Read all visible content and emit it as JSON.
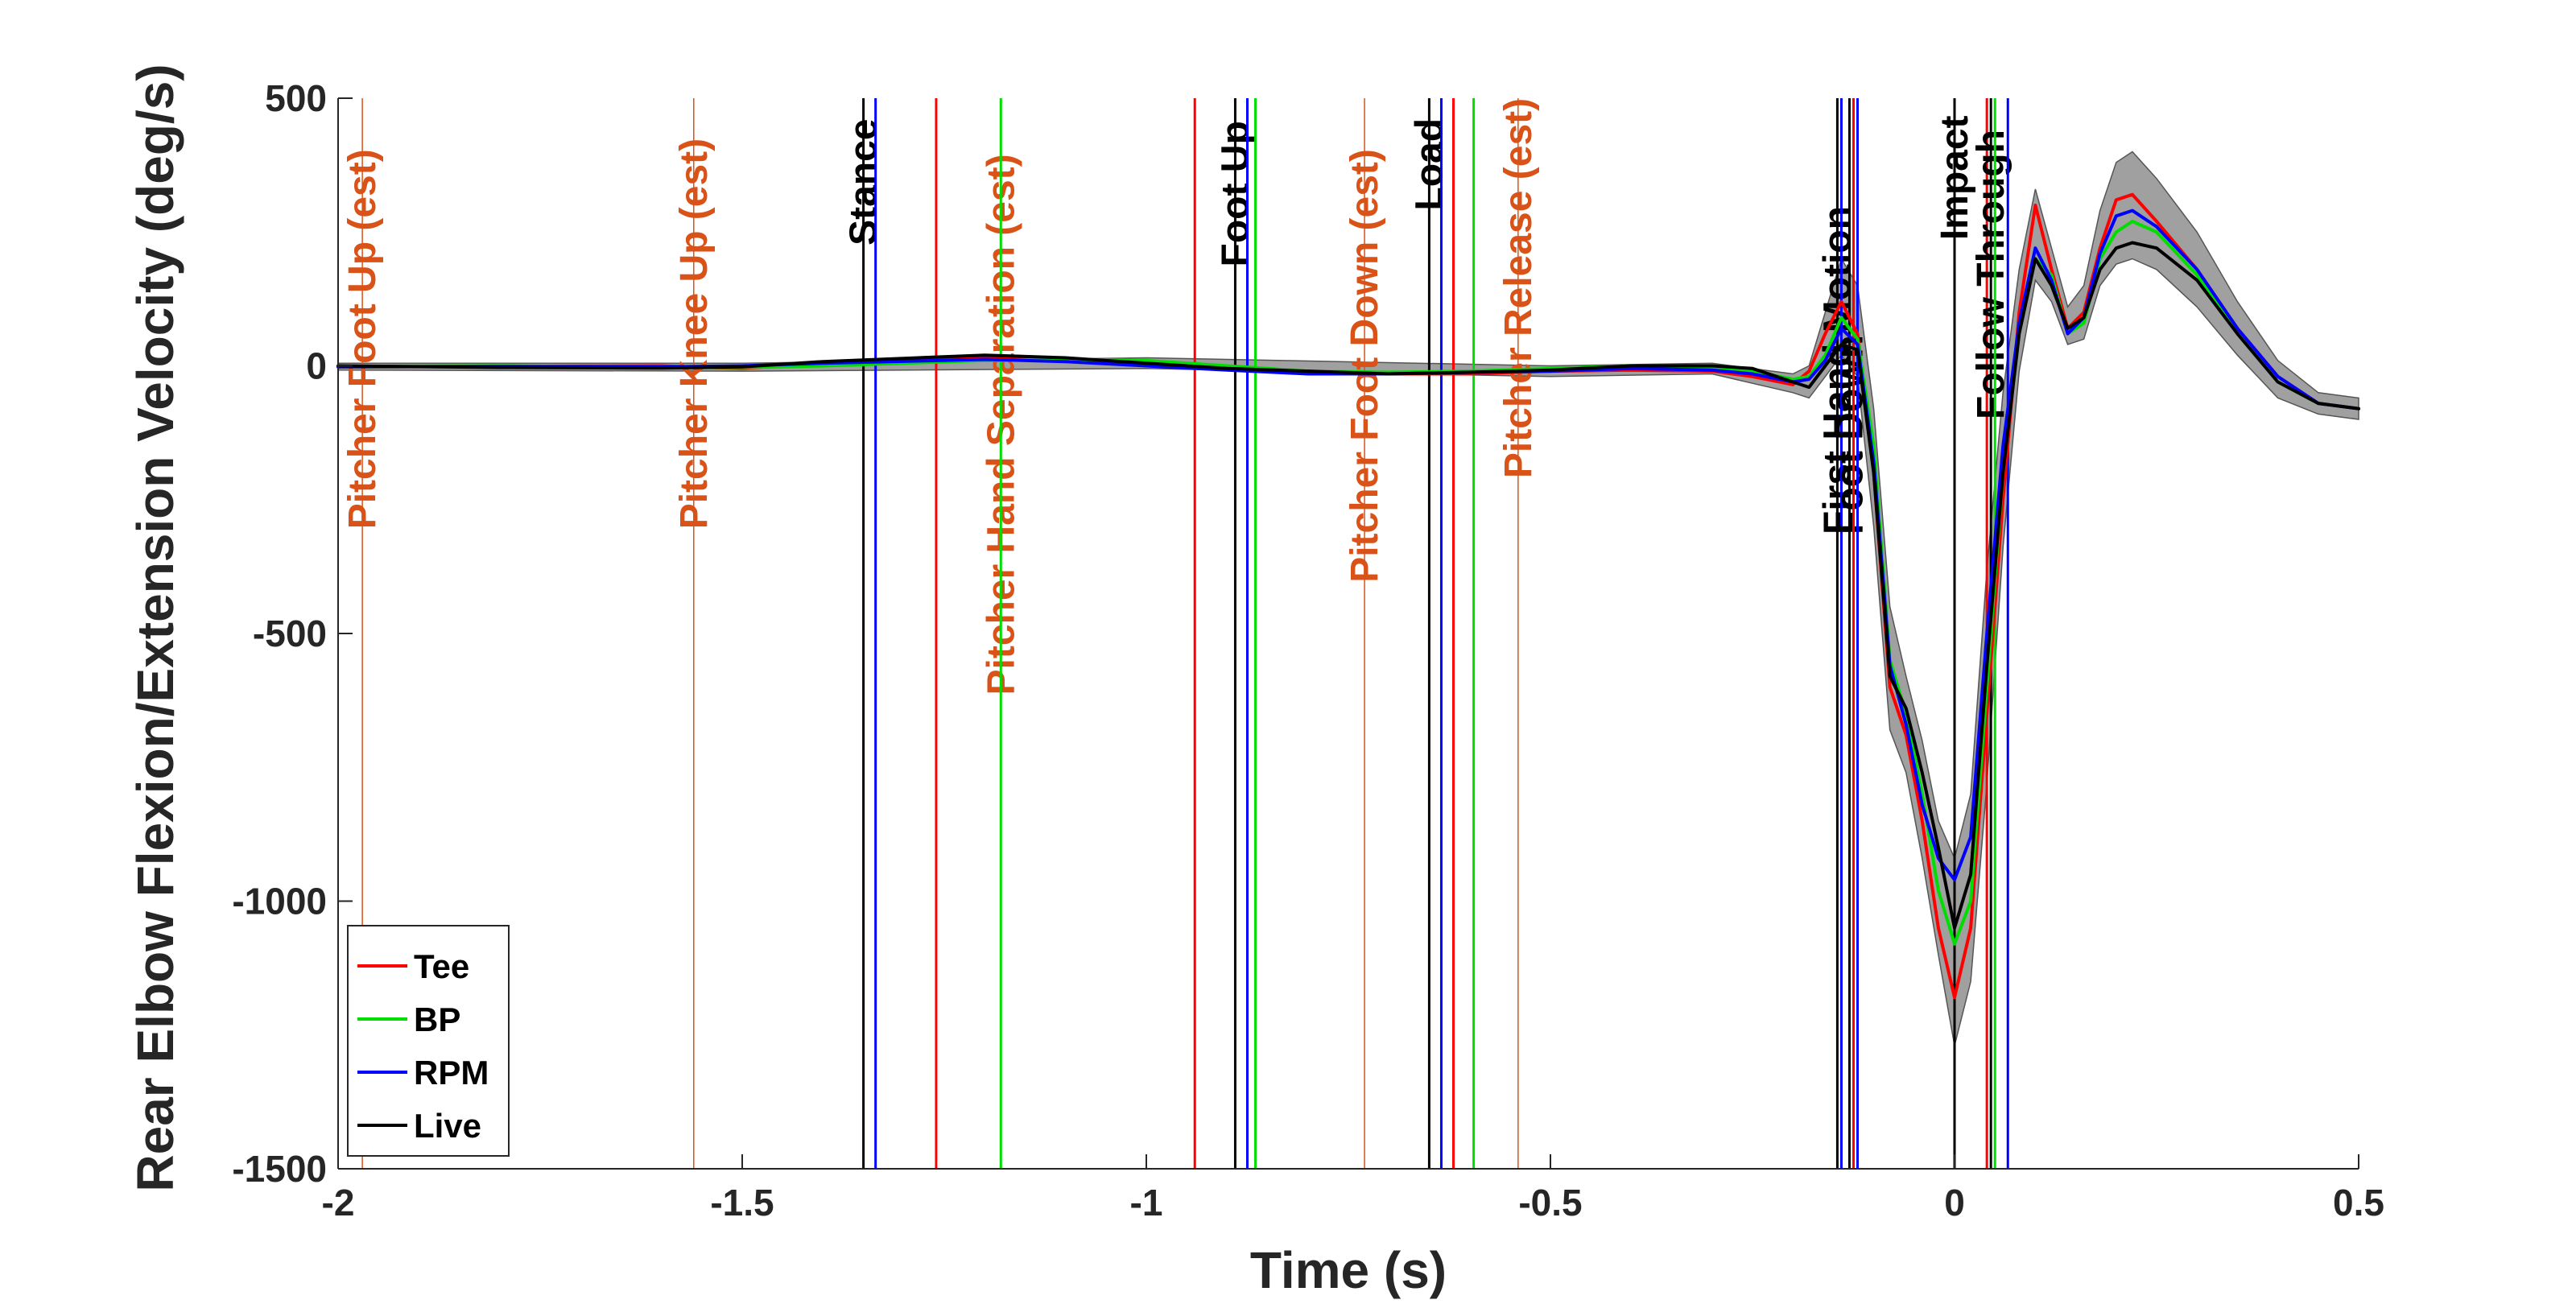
{
  "chart_data": {
    "type": "line",
    "title": "",
    "xlabel": "Time (s)",
    "ylabel": "Rear Elbow Flexion/Extension Velocity (deg/s)",
    "xlim": [
      -2,
      0.5
    ],
    "ylim": [
      -1500,
      500
    ],
    "xticks": [
      -2,
      -1.5,
      -1,
      -0.5,
      0,
      0.5
    ],
    "xtick_labels": [
      "-2",
      "-1.5",
      "-1",
      "-0.5",
      "0",
      "0.5"
    ],
    "yticks": [
      500,
      0,
      -500,
      -1000,
      -1500
    ],
    "ytick_labels": [
      "500",
      "0",
      "-500",
      "-1000",
      "-1500"
    ],
    "grid": false,
    "legend_position": "bottom-left",
    "colors": {
      "Tee": "#ff0000",
      "BP": "#00dd00",
      "RPM": "#0000ff",
      "Live": "#000000",
      "pitcher": "#d95319",
      "band": "#808080"
    },
    "series": [
      {
        "name": "Tee",
        "color": "#ff0000",
        "x": [
          -2,
          -1.8,
          -1.6,
          -1.5,
          -1.4,
          -1.2,
          -1.1,
          -1.0,
          -0.9,
          -0.8,
          -0.7,
          -0.6,
          -0.5,
          -0.4,
          -0.3,
          -0.25,
          -0.2,
          -0.18,
          -0.16,
          -0.14,
          -0.12,
          -0.1,
          -0.08,
          -0.06,
          -0.04,
          -0.02,
          0.0,
          0.02,
          0.04,
          0.06,
          0.08,
          0.1,
          0.12,
          0.14,
          0.16,
          0.18,
          0.2,
          0.22,
          0.25,
          0.3,
          0.35,
          0.4,
          0.45,
          0.5
        ],
        "y": [
          -2,
          -1,
          0,
          -5,
          5,
          15,
          10,
          5,
          -5,
          -10,
          -15,
          -15,
          -10,
          -8,
          -10,
          -20,
          -35,
          -10,
          60,
          120,
          60,
          -200,
          -600,
          -690,
          -850,
          -1050,
          -1180,
          -1050,
          -650,
          -250,
          100,
          300,
          180,
          70,
          100,
          220,
          310,
          320,
          270,
          180,
          70,
          -20,
          -70,
          -80
        ]
      },
      {
        "name": "BP",
        "color": "#00dd00",
        "x": [
          -2,
          -1.8,
          -1.6,
          -1.5,
          -1.4,
          -1.2,
          -1.1,
          -1.0,
          -0.9,
          -0.8,
          -0.7,
          -0.6,
          -0.5,
          -0.4,
          -0.3,
          -0.25,
          -0.2,
          -0.18,
          -0.16,
          -0.14,
          -0.12,
          -0.1,
          -0.08,
          -0.06,
          -0.04,
          -0.02,
          0.0,
          0.02,
          0.04,
          0.06,
          0.08,
          0.1,
          0.12,
          0.14,
          0.16,
          0.18,
          0.2,
          0.22,
          0.25,
          0.3,
          0.35,
          0.4,
          0.45,
          0.5
        ],
        "y": [
          -1,
          0,
          -3,
          -3,
          0,
          10,
          12,
          10,
          0,
          -10,
          -12,
          -10,
          -5,
          0,
          -5,
          -10,
          -25,
          -20,
          20,
          90,
          50,
          -150,
          -550,
          -650,
          -800,
          -980,
          -1080,
          -1000,
          -600,
          -200,
          80,
          200,
          170,
          60,
          80,
          200,
          250,
          270,
          250,
          170,
          60,
          -30,
          -70,
          -80
        ]
      },
      {
        "name": "RPM",
        "color": "#0000ff",
        "x": [
          -2,
          -1.8,
          -1.6,
          -1.5,
          -1.4,
          -1.2,
          -1.1,
          -1.0,
          -0.9,
          -0.8,
          -0.7,
          -0.6,
          -0.5,
          -0.4,
          -0.3,
          -0.25,
          -0.2,
          -0.18,
          -0.16,
          -0.14,
          -0.12,
          -0.1,
          -0.08,
          -0.06,
          -0.04,
          -0.02,
          0.0,
          0.02,
          0.04,
          0.06,
          0.08,
          0.1,
          0.12,
          0.14,
          0.16,
          0.18,
          0.2,
          0.22,
          0.25,
          0.3,
          0.35,
          0.4,
          0.45,
          0.5
        ],
        "y": [
          -2,
          -1,
          -2,
          0,
          5,
          12,
          8,
          0,
          -8,
          -15,
          -15,
          -12,
          -10,
          -5,
          -8,
          -15,
          -30,
          -25,
          10,
          70,
          40,
          -180,
          -560,
          -670,
          -820,
          -920,
          -960,
          -880,
          -500,
          -150,
          80,
          220,
          160,
          60,
          90,
          210,
          280,
          290,
          260,
          180,
          70,
          -20,
          -70,
          -80
        ]
      },
      {
        "name": "Live",
        "color": "#000000",
        "x": [
          -2,
          -1.8,
          -1.6,
          -1.5,
          -1.4,
          -1.2,
          -1.1,
          -1.0,
          -0.9,
          -0.8,
          -0.7,
          -0.6,
          -0.5,
          -0.4,
          -0.3,
          -0.25,
          -0.2,
          -0.18,
          -0.16,
          -0.14,
          -0.12,
          -0.1,
          -0.08,
          -0.06,
          -0.04,
          -0.02,
          0.0,
          0.02,
          0.04,
          0.06,
          0.08,
          0.1,
          0.12,
          0.14,
          0.16,
          0.18,
          0.2,
          0.22,
          0.25,
          0.3,
          0.35,
          0.4,
          0.45,
          0.5
        ],
        "y": [
          0,
          -3,
          -4,
          -2,
          8,
          20,
          15,
          5,
          -5,
          -10,
          -15,
          -12,
          -8,
          0,
          0,
          -5,
          -30,
          -40,
          0,
          40,
          30,
          -200,
          -580,
          -640,
          -760,
          -900,
          -1050,
          -950,
          -560,
          -200,
          60,
          200,
          150,
          70,
          90,
          180,
          220,
          230,
          220,
          160,
          60,
          -30,
          -70,
          -80
        ]
      }
    ],
    "band": {
      "x": [
        -2,
        -1.5,
        -1.0,
        -0.5,
        -0.3,
        -0.2,
        -0.18,
        -0.16,
        -0.14,
        -0.12,
        -0.1,
        -0.08,
        -0.06,
        -0.04,
        -0.02,
        0.0,
        0.02,
        0.04,
        0.06,
        0.08,
        0.1,
        0.12,
        0.14,
        0.16,
        0.18,
        0.2,
        0.22,
        0.25,
        0.3,
        0.35,
        0.4,
        0.45,
        0.5
      ],
      "upper": [
        5,
        5,
        15,
        0,
        5,
        -15,
        0,
        100,
        200,
        150,
        -80,
        -450,
        -580,
        -700,
        -850,
        -920,
        -800,
        -380,
        -50,
        180,
        330,
        220,
        110,
        150,
        290,
        380,
        400,
        350,
        250,
        120,
        10,
        -50,
        -60
      ],
      "lower": [
        -8,
        -10,
        -5,
        -20,
        -15,
        -50,
        -60,
        -20,
        20,
        -20,
        -300,
        -680,
        -760,
        -920,
        -1100,
        -1270,
        -1150,
        -780,
        -340,
        -10,
        160,
        120,
        40,
        50,
        150,
        190,
        200,
        180,
        110,
        20,
        -60,
        -90,
        -100
      ]
    },
    "events": [
      {
        "label": "Pitcher Foot Up (est)",
        "x": -1.97,
        "color": "#d95319",
        "line_width": 1.5,
        "text_anchor_y": -305
      },
      {
        "label": "Pitcher Knee Up (est)",
        "x": -1.56,
        "color": "#d95319",
        "line_width": 1.5,
        "text_anchor_y": -305
      },
      {
        "label": "Stance",
        "x": -1.35,
        "color": "#000000",
        "line_width": 3,
        "text_anchor_y": 225
      },
      {
        "label": "",
        "x": -1.335,
        "color": "#0000ff",
        "line_width": 3
      },
      {
        "label": "",
        "x": -1.26,
        "color": "#ff0000",
        "line_width": 3
      },
      {
        "label": "Pitcher Hand Separation (est)",
        "x": -1.18,
        "color": "#d95319",
        "line_width": 1.5,
        "text_anchor_y": -615
      },
      {
        "label": "",
        "x": -1.18,
        "color": "#00dd00",
        "line_width": 3
      },
      {
        "label": "",
        "x": -0.94,
        "color": "#ff0000",
        "line_width": 3
      },
      {
        "label": "Foot Up",
        "x": -0.89,
        "color": "#000000",
        "line_width": 3,
        "text_anchor_y": 185
      },
      {
        "label": "",
        "x": -0.875,
        "color": "#0000ff",
        "line_width": 3
      },
      {
        "label": "",
        "x": -0.865,
        "color": "#00dd00",
        "line_width": 3
      },
      {
        "label": "Pitcher Foot Down (est)",
        "x": -0.73,
        "color": "#d95319",
        "line_width": 1.5,
        "text_anchor_y": -405
      },
      {
        "label": "Load",
        "x": -0.65,
        "color": "#000000",
        "line_width": 3,
        "text_anchor_y": 290
      },
      {
        "label": "",
        "x": -0.635,
        "color": "#0000ff",
        "line_width": 3
      },
      {
        "label": "",
        "x": -0.62,
        "color": "#ff0000",
        "line_width": 3
      },
      {
        "label": "",
        "x": -0.595,
        "color": "#00dd00",
        "line_width": 3
      },
      {
        "label": "Pitcher Release (est)",
        "x": -0.54,
        "color": "#d95319",
        "line_width": 1.5,
        "text_anchor_y": -210
      },
      {
        "label": "First Hand Motion",
        "x": -0.145,
        "color": "#000000",
        "line_width": 3,
        "text_anchor_y": -315
      },
      {
        "label": "",
        "x": -0.14,
        "color": "#0000ff",
        "line_width": 3
      },
      {
        "label": "Foot Down",
        "x": -0.13,
        "color": "#000000",
        "line_width": 3,
        "text_anchor_y": -315
      },
      {
        "label": "",
        "x": -0.125,
        "color": "#ff0000",
        "line_width": 3
      },
      {
        "label": "",
        "x": -0.12,
        "color": "#0000ff",
        "line_width": 3
      },
      {
        "label": "Impact",
        "x": 0.0,
        "color": "#000000",
        "line_width": 3,
        "text_anchor_y": 235
      },
      {
        "label": "",
        "x": 0.04,
        "color": "#ff0000",
        "line_width": 3
      },
      {
        "label": "Follow Through",
        "x": 0.045,
        "color": "#000000",
        "line_width": 3,
        "text_anchor_y": -100
      },
      {
        "label": "",
        "x": 0.05,
        "color": "#00dd00",
        "line_width": 3
      },
      {
        "label": "",
        "x": 0.066,
        "color": "#0000ff",
        "line_width": 3
      }
    ],
    "legend": [
      {
        "label": "Tee",
        "color": "#ff0000"
      },
      {
        "label": "BP",
        "color": "#00dd00"
      },
      {
        "label": "RPM",
        "color": "#0000ff"
      },
      {
        "label": "Live",
        "color": "#000000"
      }
    ]
  }
}
